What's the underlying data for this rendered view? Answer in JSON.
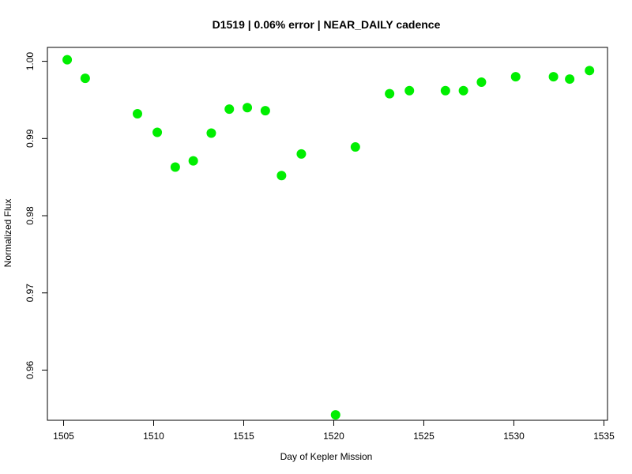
{
  "chart_data": {
    "type": "scatter",
    "title": "D1519 | 0.06% error | NEAR_DAILY cadence",
    "xlabel": "Day of Kepler Mission",
    "ylabel": "Normalized Flux",
    "xlim": [
      1504.1,
      1535.2
    ],
    "ylim": [
      0.9535,
      1.0018
    ],
    "x_ticks": [
      1505,
      1510,
      1515,
      1520,
      1525,
      1530,
      1535
    ],
    "x_tick_labels": [
      "1505",
      "1510",
      "1515",
      "1520",
      "1525",
      "1530",
      "1535"
    ],
    "y_ticks": [
      0.96,
      0.97,
      0.98,
      0.99,
      1.0
    ],
    "y_tick_labels": [
      "0.96",
      "0.97",
      "0.98",
      "0.99",
      "1.00"
    ],
    "grid": false,
    "legend": "none",
    "marker_color": "#00ee00",
    "series": [
      {
        "x": [
          1505.2,
          1506.2,
          1509.1,
          1510.2,
          1511.2,
          1512.2,
          1513.2,
          1514.2,
          1515.2,
          1516.2,
          1517.1,
          1518.2,
          1520.1,
          1521.2,
          1523.1,
          1524.2,
          1526.2,
          1527.2,
          1528.2,
          1530.1,
          1532.2,
          1533.1,
          1534.2
        ],
        "y": [
          1.0002,
          0.9978,
          0.9932,
          0.9908,
          0.9863,
          0.9871,
          0.9907,
          0.9938,
          0.994,
          0.9936,
          0.9852,
          0.988,
          0.9542,
          0.9889,
          0.9958,
          0.9962,
          0.9962,
          0.9962,
          0.9973,
          0.998,
          0.998,
          0.9977,
          0.9988
        ]
      }
    ]
  }
}
